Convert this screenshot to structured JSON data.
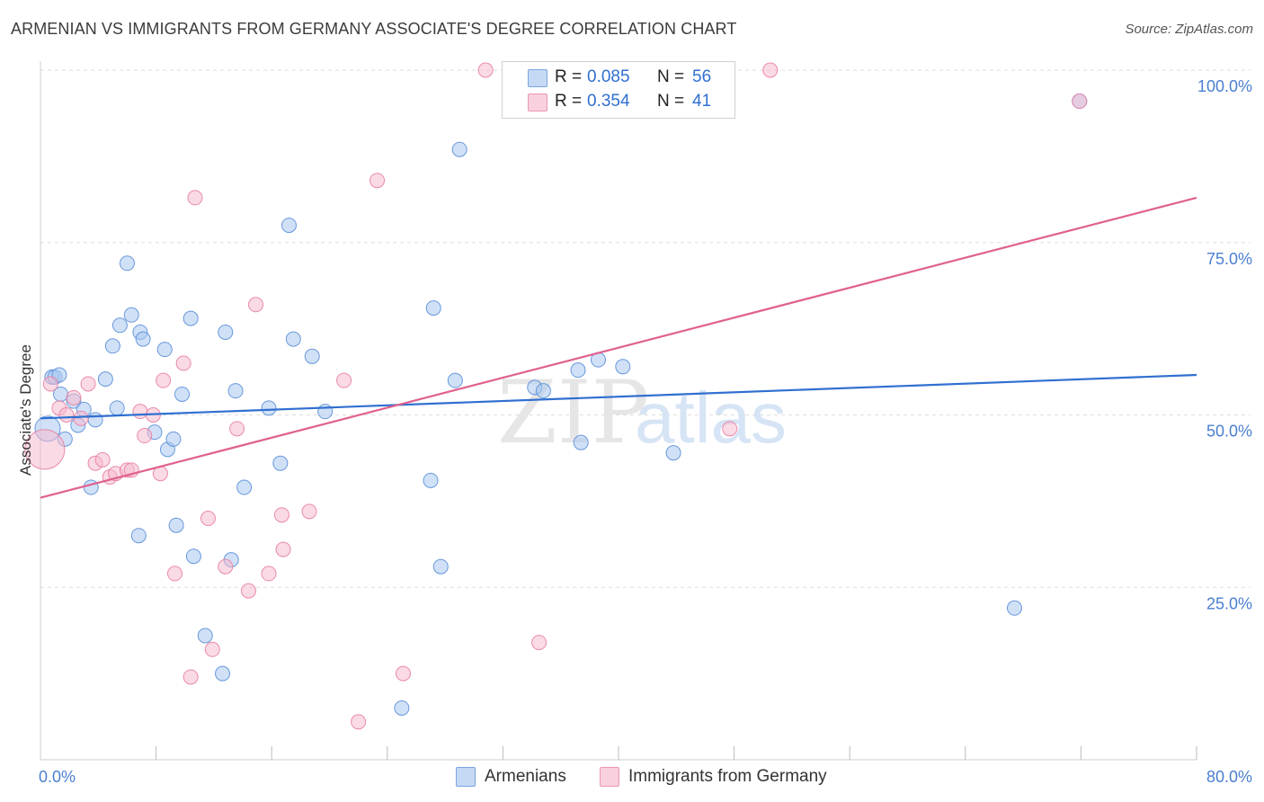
{
  "title": "ARMENIAN VS IMMIGRANTS FROM GERMANY ASSOCIATE'S DEGREE CORRELATION CHART",
  "source": "Source: ZipAtlas.com",
  "watermark": {
    "part1": "ZIP",
    "part2": "atlas"
  },
  "colors": {
    "blue_fill": "#a9c8f0",
    "blue_stroke": "#5a8ed8",
    "blue_line": "#2f6fd0",
    "pink_fill": "#f6bcd0",
    "pink_stroke": "#e87fa3",
    "pink_line": "#e0608e",
    "grid": "#dddddd",
    "axis_text": "#4a7fd0"
  },
  "legend": {
    "rows": [
      {
        "r_label": "R =",
        "r_value": "0.085",
        "n_label": "N =",
        "n_value": "56"
      },
      {
        "r_label": "R =",
        "r_value": "0.354",
        "n_label": "N =",
        "n_value": "41"
      }
    ]
  },
  "bottom_legend": {
    "armenians": "Armenians",
    "germany": "Immigrants from Germany"
  },
  "chart_data": {
    "type": "scatter",
    "title": "ARMENIAN VS IMMIGRANTS FROM GERMANY ASSOCIATE'S DEGREE CORRELATION CHART",
    "xlabel": "",
    "ylabel": "Associate's Degree",
    "xlim": [
      0,
      80
    ],
    "ylim": [
      0,
      100
    ],
    "x_tick_labels": [
      "0.0%",
      "80.0%"
    ],
    "y_ticks": [
      25,
      50,
      75,
      100
    ],
    "y_tick_labels": [
      "25.0%",
      "50.0%",
      "75.0%",
      "100.0%"
    ],
    "grid": true,
    "series": [
      {
        "name": "Armenians",
        "r": 0.085,
        "n": 56,
        "trend": {
          "x": [
            0,
            80
          ],
          "y": [
            49.5,
            55.8
          ]
        },
        "points": [
          [
            0.5,
            48.0,
            2
          ],
          [
            0.8,
            55.5,
            1
          ],
          [
            1.0,
            55.5,
            1
          ],
          [
            1.3,
            55.8,
            1
          ],
          [
            1.4,
            53.0,
            1
          ],
          [
            1.7,
            46.5,
            1
          ],
          [
            2.3,
            52.0,
            1
          ],
          [
            2.6,
            48.5,
            1
          ],
          [
            3.0,
            50.8,
            1
          ],
          [
            3.5,
            39.5,
            1
          ],
          [
            3.8,
            49.3,
            1
          ],
          [
            4.5,
            55.2,
            1
          ],
          [
            5.0,
            60.0,
            1
          ],
          [
            5.3,
            51.0,
            1
          ],
          [
            5.5,
            63.0,
            1
          ],
          [
            6.0,
            72.0,
            1
          ],
          [
            6.3,
            64.5,
            1
          ],
          [
            6.8,
            32.5,
            1
          ],
          [
            6.9,
            62.0,
            1
          ],
          [
            7.1,
            61.0,
            1
          ],
          [
            7.9,
            47.5,
            1
          ],
          [
            8.6,
            59.5,
            1
          ],
          [
            8.8,
            45.0,
            1
          ],
          [
            9.2,
            46.5,
            1
          ],
          [
            9.4,
            34.0,
            1
          ],
          [
            9.8,
            53.0,
            1
          ],
          [
            10.4,
            64.0,
            1
          ],
          [
            10.6,
            29.5,
            1
          ],
          [
            11.4,
            18.0,
            1
          ],
          [
            12.6,
            12.5,
            1
          ],
          [
            12.8,
            62.0,
            1
          ],
          [
            13.2,
            29.0,
            1
          ],
          [
            13.5,
            53.5,
            1
          ],
          [
            14.1,
            39.5,
            1
          ],
          [
            15.8,
            51.0,
            1
          ],
          [
            16.6,
            43.0,
            1
          ],
          [
            17.2,
            77.5,
            1
          ],
          [
            17.5,
            61.0,
            1
          ],
          [
            18.8,
            58.5,
            1
          ],
          [
            19.7,
            50.5,
            1
          ],
          [
            25.0,
            7.5,
            1
          ],
          [
            27.0,
            40.5,
            1
          ],
          [
            27.2,
            65.5,
            1
          ],
          [
            27.7,
            28.0,
            1
          ],
          [
            28.7,
            55.0,
            1
          ],
          [
            29.0,
            88.5,
            1
          ],
          [
            34.2,
            54.0,
            1
          ],
          [
            34.8,
            53.5,
            1
          ],
          [
            37.2,
            56.5,
            1
          ],
          [
            37.4,
            46.0,
            1
          ],
          [
            38.6,
            58.0,
            1
          ],
          [
            40.3,
            57.0,
            1
          ],
          [
            43.8,
            44.5,
            1
          ],
          [
            67.4,
            22.0,
            1
          ],
          [
            71.9,
            95.5,
            1
          ]
        ]
      },
      {
        "name": "Immigrants from Germany",
        "r": 0.354,
        "n": 41,
        "trend": {
          "x": [
            0,
            80
          ],
          "y": [
            38.0,
            81.5
          ]
        },
        "points": [
          [
            0.3,
            45.0,
            3
          ],
          [
            0.7,
            54.5,
            1
          ],
          [
            1.3,
            51.0,
            1
          ],
          [
            1.8,
            50.0,
            1
          ],
          [
            2.3,
            52.5,
            1
          ],
          [
            2.8,
            49.5,
            1
          ],
          [
            3.3,
            54.5,
            1
          ],
          [
            3.8,
            43.0,
            1
          ],
          [
            4.3,
            43.5,
            1
          ],
          [
            4.8,
            41.0,
            1
          ],
          [
            5.2,
            41.5,
            1
          ],
          [
            6.0,
            42.0,
            1
          ],
          [
            6.3,
            42.0,
            1
          ],
          [
            6.9,
            50.5,
            1
          ],
          [
            7.2,
            47.0,
            1
          ],
          [
            7.8,
            50.0,
            1
          ],
          [
            8.3,
            41.5,
            1
          ],
          [
            8.5,
            55.0,
            1
          ],
          [
            9.3,
            27.0,
            1
          ],
          [
            9.9,
            57.5,
            1
          ],
          [
            10.4,
            12.0,
            1
          ],
          [
            10.7,
            81.5,
            1
          ],
          [
            11.6,
            35.0,
            1
          ],
          [
            11.9,
            16.0,
            1
          ],
          [
            12.8,
            28.0,
            1
          ],
          [
            13.6,
            48.0,
            1
          ],
          [
            14.4,
            24.5,
            1
          ],
          [
            14.9,
            66.0,
            1
          ],
          [
            15.8,
            27.0,
            1
          ],
          [
            16.7,
            35.5,
            1
          ],
          [
            16.8,
            30.5,
            1
          ],
          [
            18.6,
            36.0,
            1
          ],
          [
            21.0,
            55.0,
            1
          ],
          [
            22.0,
            5.5,
            1
          ],
          [
            23.3,
            84.0,
            1
          ],
          [
            25.1,
            12.5,
            1
          ],
          [
            30.8,
            100.0,
            1
          ],
          [
            34.5,
            17.0,
            1
          ],
          [
            47.7,
            48.0,
            1
          ],
          [
            50.5,
            100.0,
            1
          ],
          [
            71.9,
            95.5,
            1
          ]
        ]
      }
    ]
  }
}
